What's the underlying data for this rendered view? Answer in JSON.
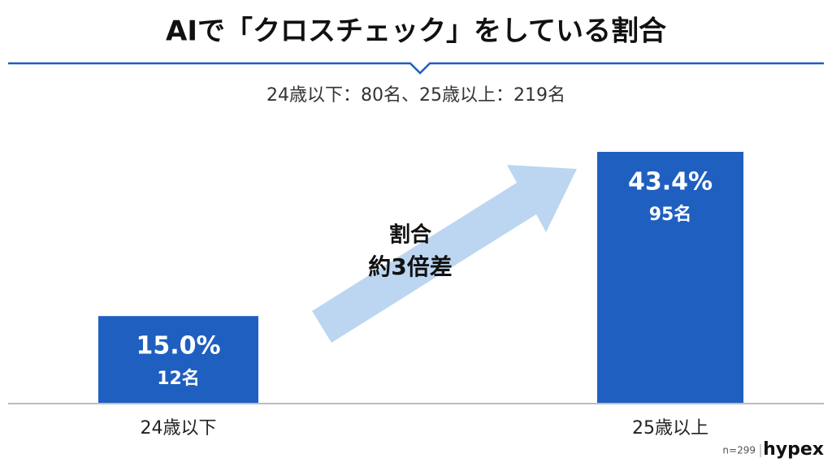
{
  "chart_data": {
    "type": "bar",
    "title": "AIで「クロスチェック」をしている割合",
    "subtitle": "24歳以下：80名、25歳以上：219名",
    "categories": [
      "24歳以下",
      "25歳以上"
    ],
    "values": [
      15.0,
      43.4
    ],
    "value_labels": [
      "15.0%",
      "43.4%"
    ],
    "count_labels": [
      "12名",
      "95名"
    ],
    "color": "#1f5fbf",
    "annotation": [
      "割合",
      "約3倍差"
    ],
    "sample_note": "n=299",
    "brand": "hypex"
  }
}
